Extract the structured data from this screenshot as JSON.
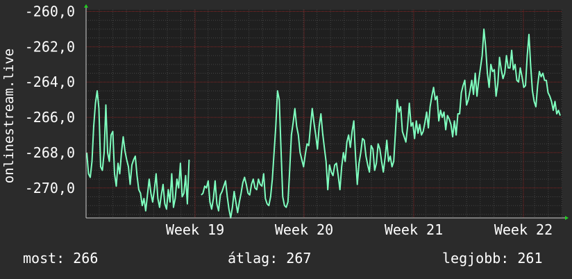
{
  "chart_data": {
    "type": "line",
    "ylabel": "onlinestream.live",
    "y_ticks": [
      -260,
      -262,
      -264,
      -266,
      -268,
      -270
    ],
    "y_tick_labels": [
      "-260,0",
      "-262,0",
      "-264,0",
      "-266,0",
      "-268,0",
      "-270,0"
    ],
    "ylim": [
      -271.7,
      -259.9
    ],
    "x_ticks": [
      "Week 19",
      "Week 20",
      "Week 21",
      "Week 22"
    ],
    "grid": true,
    "colors": {
      "background": "#2b2b2b",
      "plot_background": "#1f1f1f",
      "grid_major": "#8a2323",
      "grid_minor": "#444444",
      "line": "#7fffbf",
      "arrow": "#22cc22"
    },
    "series": [
      {
        "values": [
          -268.0,
          -269.2,
          -269.4,
          -268.5,
          -266.5,
          -265.2,
          -264.5,
          -265.5,
          -268.8,
          -269.0,
          -268.0,
          -265.3,
          -268.0,
          -268.5,
          -267.0,
          -266.8,
          -269.2,
          -269.9,
          -268.6,
          -269.2,
          -268.0,
          -267.1,
          -267.9,
          -268.4,
          -268.8,
          -269.8,
          -268.7,
          -268.4,
          -268.2,
          -269.3,
          -270.1,
          -270.3,
          -271.0,
          -270.6,
          -271.3,
          -270.4,
          -269.5,
          -270.3,
          -270.8,
          -270.1,
          -269.2,
          -270.6,
          -271.1,
          -270.4,
          -269.8,
          -270.9,
          -271.2,
          -270.1,
          -270.8,
          -269.2,
          -271.1,
          -270.6,
          -269.5,
          -270.0,
          -268.6,
          -270.5,
          -270.3,
          -269.3,
          -270.9,
          -268.4,
          null,
          null,
          null,
          null,
          null,
          null,
          -270.4,
          -270.3,
          -269.9,
          -270.0,
          -269.6,
          -270.8,
          -271.2,
          -270.6,
          -269.6,
          -270.9,
          -271.3,
          -270.4,
          -270.2,
          -269.9,
          -269.6,
          -270.5,
          -271.2,
          -271.7,
          -271.1,
          -270.2,
          -270.8,
          -271.4,
          -270.8,
          -270.3,
          -269.7,
          -269.4,
          -269.8,
          -270.3,
          -270.4,
          -269.8,
          -269.5,
          -270.0,
          -270.1,
          -269.5,
          -269.8,
          -269.9,
          -269.2,
          -270.6,
          -270.9,
          -271.0,
          -270.5,
          -269.5,
          -268.0,
          -266.5,
          -264.5,
          -265.0,
          -267.8,
          -270.5,
          -271.0,
          -271.1,
          -270.8,
          -269.0,
          -267.0,
          -266.3,
          -265.5,
          -266.5,
          -267.0,
          -268.0,
          -268.4,
          -268.8,
          -268.1,
          -267.5,
          -267.6,
          -266.5,
          -265.5,
          -266.3,
          -267.0,
          -267.8,
          -266.5,
          -265.8,
          -266.9,
          -267.7,
          -268.5,
          -270.1,
          -268.7,
          -269.1,
          -269.3,
          -268.7,
          -268.6,
          -269.3,
          -270.1,
          -268.8,
          -268.0,
          -268.5,
          -267.4,
          -267.0,
          -267.7,
          -266.8,
          -266.2,
          -268.2,
          -269.8,
          -268.6,
          -268.0,
          -267.2,
          -267.3,
          -268.2,
          -268.7,
          -269.1,
          -267.6,
          -267.8,
          -269.0,
          -268.6,
          -267.5,
          -267.8,
          -268.5,
          -269.1,
          -268.3,
          -267.3,
          -268.5,
          -268.2,
          -268.8,
          -268.5,
          -266.8,
          -265.0,
          -265.7,
          -265.4,
          -266.8,
          -267.1,
          -267.4,
          -266.5,
          -265.2,
          -266.5,
          -266.3,
          -267.2,
          -266.2,
          -266.9,
          -266.4,
          -267.0,
          -266.8,
          -266.3,
          -265.7,
          -266.6,
          -265.4,
          -264.8,
          -264.3,
          -265.0,
          -264.8,
          -266.2,
          -265.6,
          -266.0,
          -265.7,
          -266.7,
          -265.9,
          -266.1,
          -266.4,
          -267.1,
          -266.2,
          -267.0,
          -265.8,
          -265.8,
          -264.6,
          -264.2,
          -263.9,
          -265.3,
          -265.0,
          -264.5,
          -263.9,
          -264.7,
          -263.5,
          -264.8,
          -263.9,
          -263.2,
          -262.5,
          -261.0,
          -262.0,
          -263.5,
          -264.3,
          -263.0,
          -263.4,
          -263.3,
          -264.8,
          -264.1,
          -262.6,
          -263.3,
          -263.8,
          -263.5,
          -262.5,
          -263.2,
          -263.2,
          -262.2,
          -263.3,
          -263.0,
          -263.9,
          -264.0,
          -263.2,
          -263.7,
          -264.3,
          -264.2,
          -262.5,
          -261.3,
          -263.1,
          -264.5,
          -265.1,
          -265.4,
          -264.2,
          -263.4,
          -263.7,
          -263.5,
          -263.9,
          -263.9,
          -264.6,
          -264.8,
          -265.1,
          -265.6,
          -265.1,
          -265.8,
          -265.6,
          -265.9
        ]
      }
    ]
  },
  "stats": {
    "current": "most: 266",
    "average": "átlag: 267",
    "best": "legjobb: 261"
  }
}
